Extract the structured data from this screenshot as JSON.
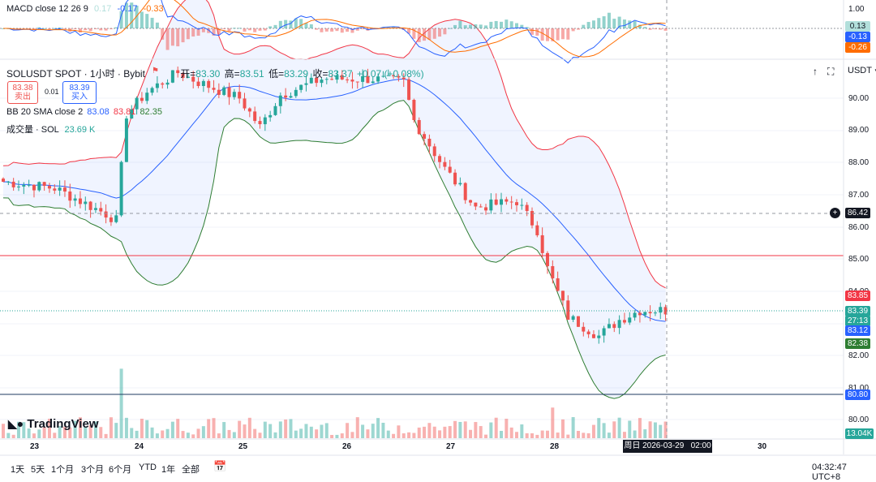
{
  "macd_legend": {
    "name": "MACD",
    "params": "close 12 26 9",
    "hist": "0.17",
    "macd": "-0.17",
    "signal": "-0.33"
  },
  "symbol_legend": {
    "title": "SOLUSDT SPOT · 1小时 · Bybit",
    "open_label": "开=",
    "open": "83.30",
    "high_label": "高=",
    "high": "83.51",
    "low_label": "低=",
    "low": "83.29",
    "close_label": "收=",
    "close": "83.37",
    "change": "+0.07 (+0.08%)"
  },
  "trade": {
    "sell_price": "83.38",
    "sell_label": "卖出",
    "spread": "0.01",
    "buy_price": "83.39",
    "buy_label": "买入"
  },
  "bb_legend": {
    "name": "BB",
    "params": "20 SMA close 2",
    "basis": "83.08",
    "upper": "83.81",
    "lower": "82.35"
  },
  "vol_legend": {
    "name": "成交量 · SOL",
    "value": "23.69 K"
  },
  "currency": "USDT",
  "macd_axis": {
    "top": "1.00",
    "hist_badge": "0.13",
    "macd_badge": "-0.13",
    "signal_badge": "-0.26"
  },
  "price_axis": [
    "90.00",
    "89.00",
    "88.00",
    "87.00",
    "86.00",
    "85.00",
    "84.00",
    "82.00",
    "81.00",
    "80.00"
  ],
  "price_badges": {
    "crosshair": "86.42",
    "upper": "83.85",
    "last": "83.39",
    "countdown": "27:13",
    "basis": "83.12",
    "lower": "82.38",
    "hline": "80.80",
    "volume": "13.04K"
  },
  "date_axis": [
    "23",
    "24",
    "25",
    "26",
    "27",
    "28",
    "30"
  ],
  "crosshair_date": "周日 2026-03-29   02:00",
  "bottom_ranges": [
    "1天",
    "5天",
    "1个月",
    "3个月",
    "6个月",
    "YTD",
    "1年",
    "全部"
  ],
  "clock": "04:32:47 UTC+8",
  "logo_text": "TradingView",
  "colors": {
    "up": "#26a69a",
    "down": "#ef5350",
    "bb_basis": "#2962ff",
    "bb_band": "#2e7d32",
    "bb_upper": "#f23645",
    "macd": "#2962ff",
    "signal": "#ff6d00"
  }
}
